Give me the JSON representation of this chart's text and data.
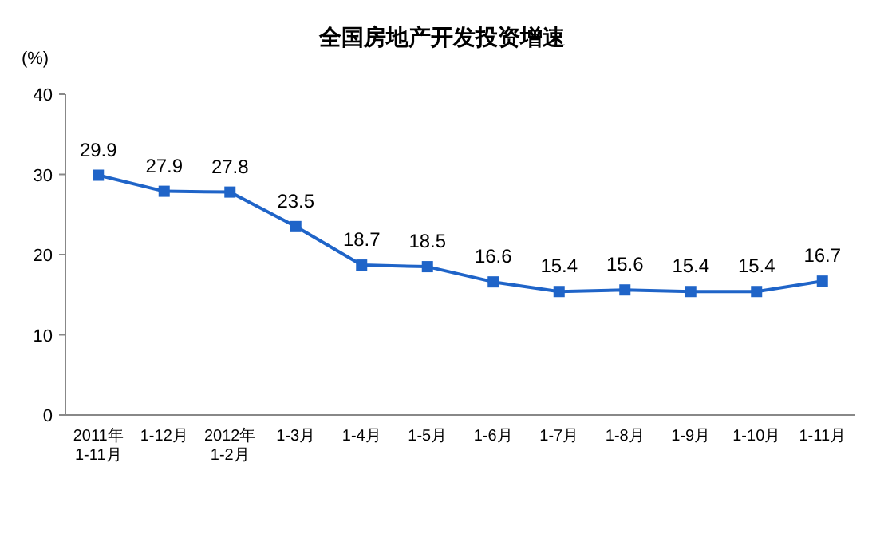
{
  "chart_data": {
    "type": "line",
    "title": "全国房地产开发投资增速",
    "ylabel": "(%)",
    "categories": [
      "2011年\n1-11月",
      "1-12月",
      "2012年\n1-2月",
      "1-3月",
      "1-4月",
      "1-5月",
      "1-6月",
      "1-7月",
      "1-8月",
      "1-9月",
      "1-10月",
      "1-11月"
    ],
    "series": [
      {
        "color": "#1f64c8",
        "values": [
          29.9,
          27.9,
          27.8,
          23.5,
          18.7,
          18.5,
          16.6,
          15.4,
          15.6,
          15.4,
          15.4,
          16.7
        ]
      }
    ],
    "ylim": [
      0,
      40
    ],
    "yticks": [
      0,
      10,
      20,
      30,
      40
    ],
    "data_labels": true,
    "marker": "square",
    "line_style": "solid"
  }
}
